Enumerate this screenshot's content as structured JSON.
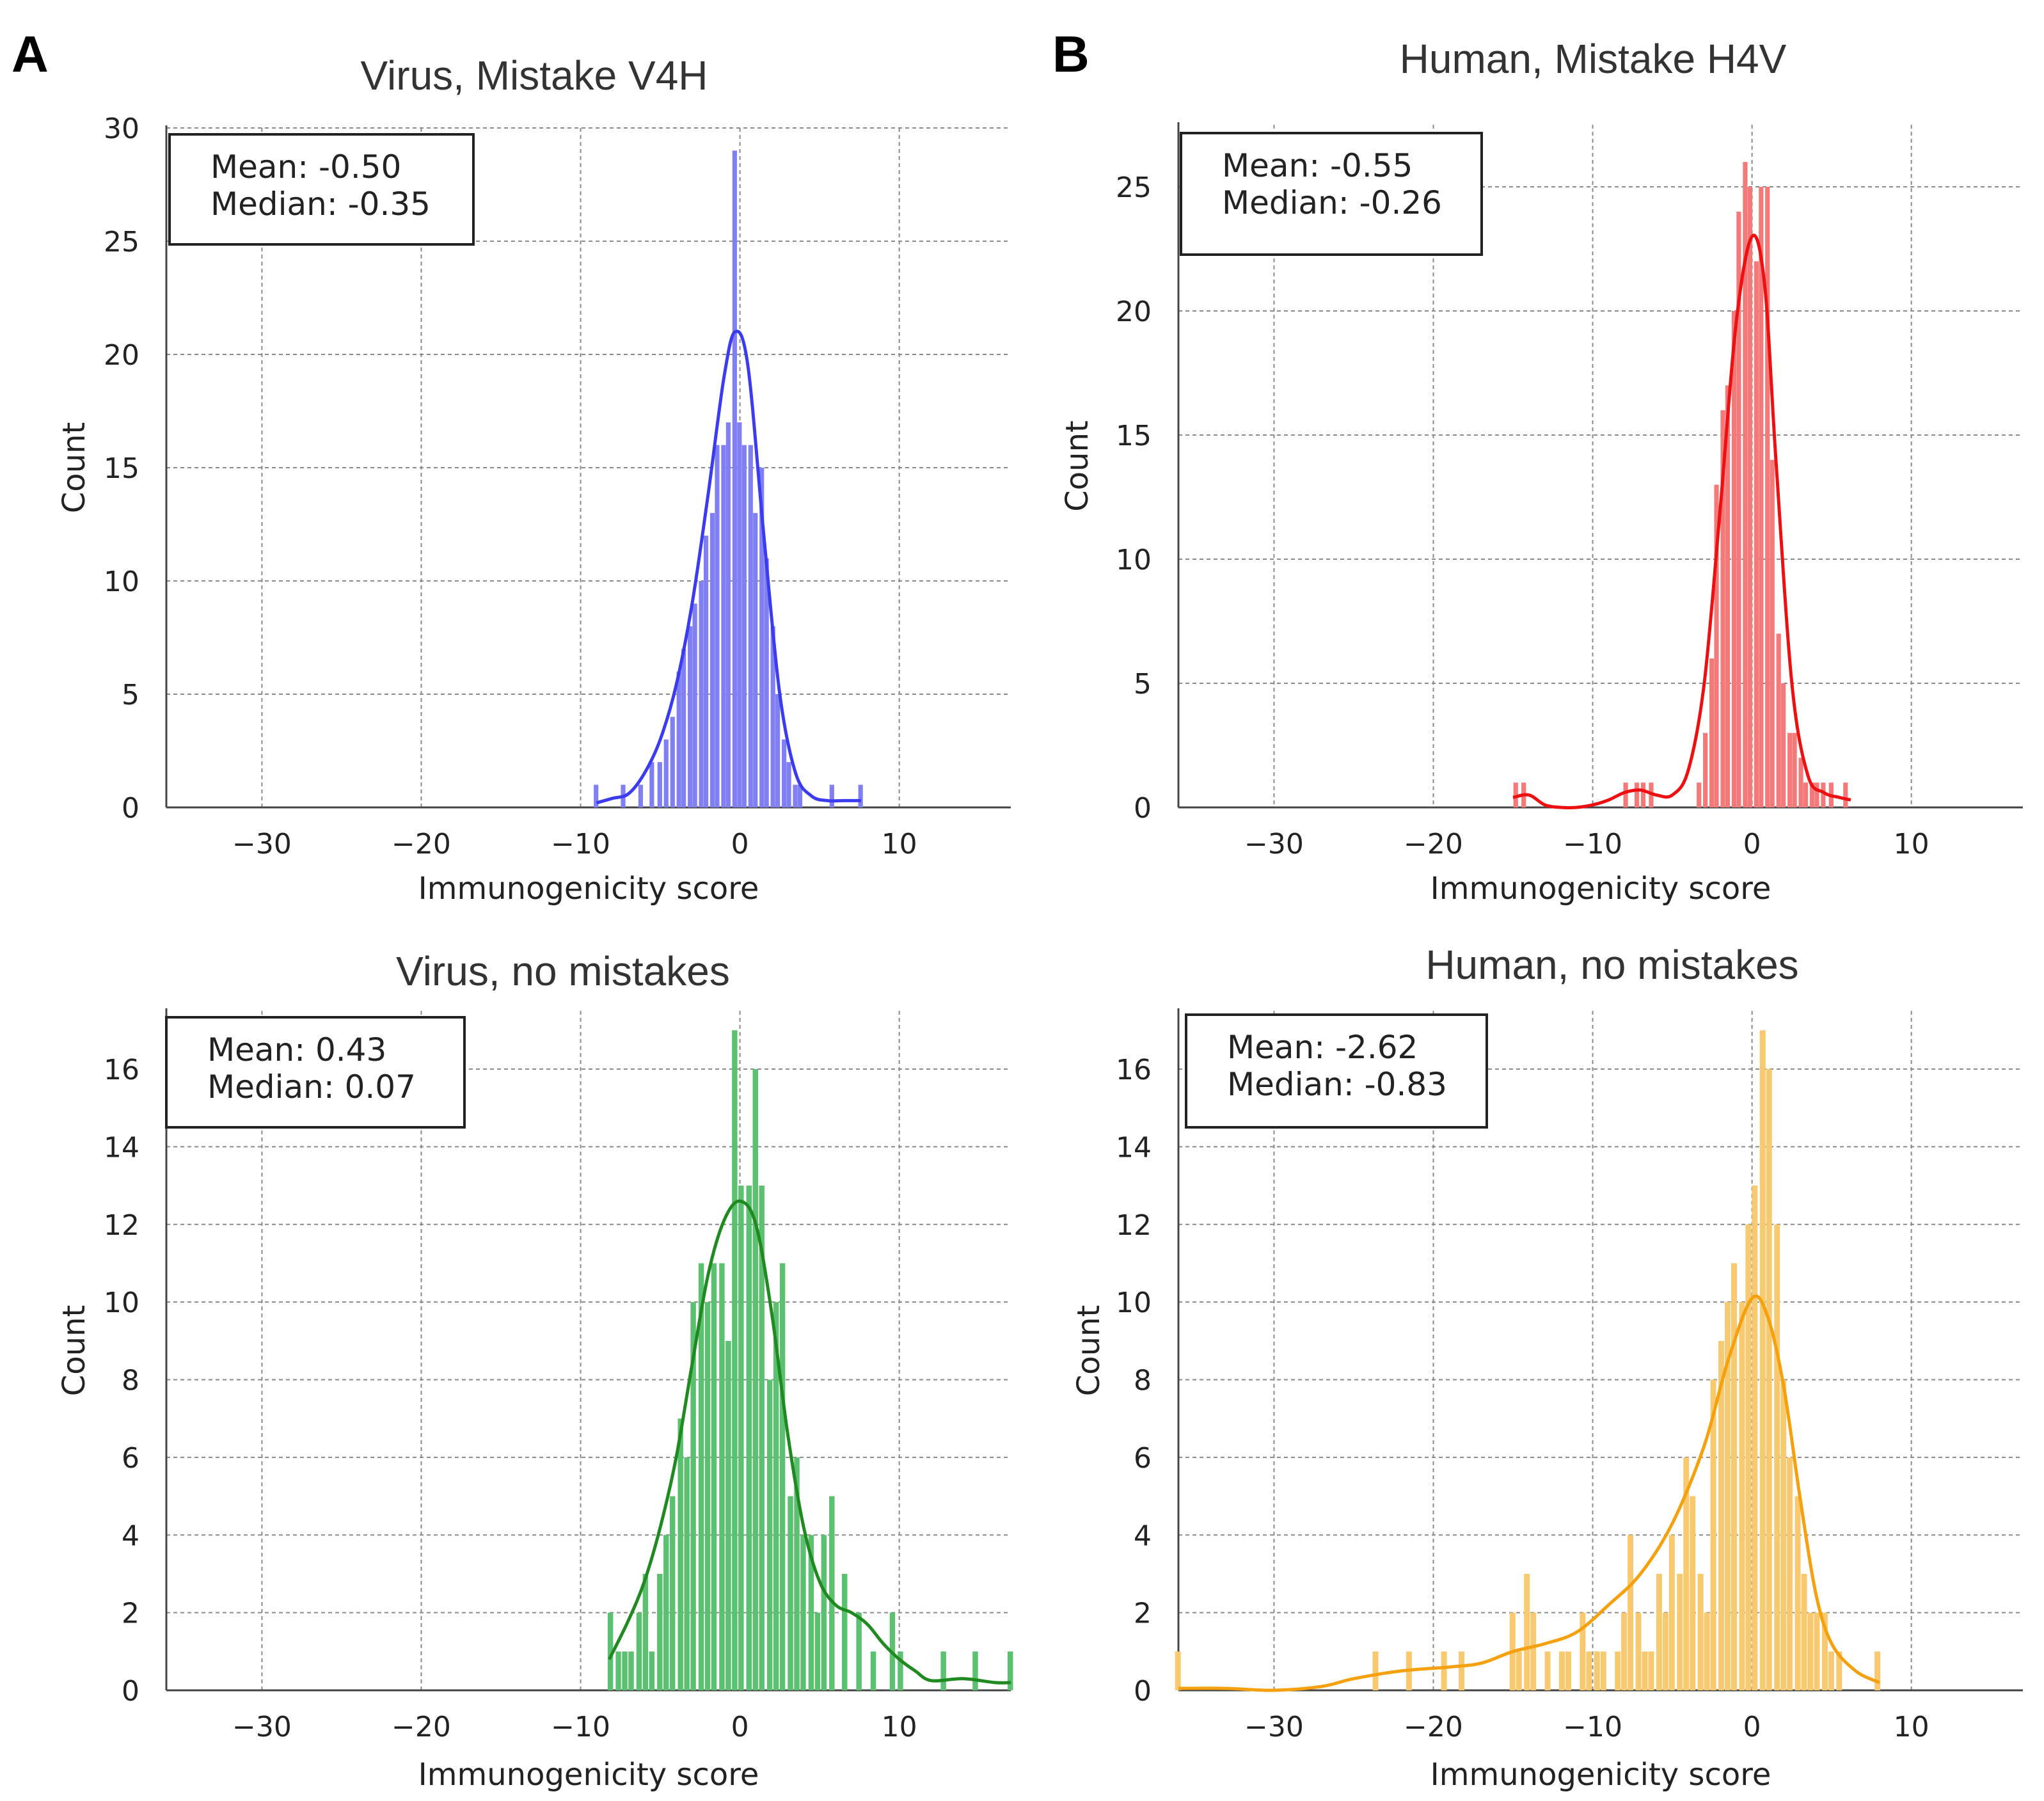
{
  "panels": [
    {
      "letter": "A"
    },
    {
      "letter": "B"
    }
  ],
  "chart_data": [
    {
      "type": "histogram",
      "title": "Virus, Mistake V4H",
      "xlabel": "Immunogenicity score",
      "ylabel": "Count",
      "xlim": [
        -36,
        17
      ],
      "ylim": [
        0,
        30
      ],
      "xticks": [
        -30,
        -20,
        -10,
        0,
        10
      ],
      "yticks": [
        0,
        5,
        10,
        15,
        20,
        25,
        30
      ],
      "grid": true,
      "color": "#3b3bf0",
      "bar_color": "#8080f4",
      "stats": {
        "mean": "Mean: -0.50",
        "median": "Median: -0.35"
      },
      "bin_width": 0.35,
      "bins": [
        [
          -9.0,
          1
        ],
        [
          -7.3,
          1
        ],
        [
          -6.2,
          1
        ],
        [
          -5.5,
          2
        ],
        [
          -5.0,
          2
        ],
        [
          -4.6,
          3
        ],
        [
          -4.2,
          4
        ],
        [
          -3.8,
          6
        ],
        [
          -3.5,
          7
        ],
        [
          -3.1,
          8
        ],
        [
          -2.8,
          9
        ],
        [
          -2.4,
          10
        ],
        [
          -2.1,
          12
        ],
        [
          -1.7,
          13
        ],
        [
          -1.4,
          16
        ],
        [
          -1.0,
          16
        ],
        [
          -0.7,
          17
        ],
        [
          -0.3,
          29
        ],
        [
          0.0,
          17
        ],
        [
          0.3,
          16
        ],
        [
          0.7,
          16
        ],
        [
          1.0,
          13
        ],
        [
          1.4,
          15
        ],
        [
          1.7,
          11
        ],
        [
          2.1,
          8
        ],
        [
          2.4,
          5
        ],
        [
          2.8,
          3
        ],
        [
          3.1,
          2
        ],
        [
          3.5,
          1
        ],
        [
          3.8,
          1
        ],
        [
          5.8,
          1
        ],
        [
          7.6,
          1
        ]
      ],
      "kde": [
        [
          -9.0,
          0.2
        ],
        [
          -8.0,
          0.4
        ],
        [
          -7.0,
          0.6
        ],
        [
          -6.0,
          1.5
        ],
        [
          -5.0,
          3.0
        ],
        [
          -4.0,
          5.4
        ],
        [
          -3.0,
          9.0
        ],
        [
          -2.0,
          13.8
        ],
        [
          -1.0,
          19.0
        ],
        [
          -0.3,
          21.0
        ],
        [
          0.5,
          19.5
        ],
        [
          1.5,
          12.0
        ],
        [
          2.5,
          5.0
        ],
        [
          3.5,
          1.5
        ],
        [
          4.5,
          0.5
        ],
        [
          5.5,
          0.3
        ],
        [
          6.5,
          0.3
        ],
        [
          7.6,
          0.3
        ]
      ]
    },
    {
      "type": "histogram",
      "title": "Human, Mistake H4V",
      "xlabel": "Immunogenicity score",
      "ylabel": "Count",
      "xlim": [
        -36,
        17
      ],
      "ylim": [
        0,
        27.5
      ],
      "xticks": [
        -30,
        -20,
        -10,
        0,
        10
      ],
      "yticks": [
        0,
        5,
        10,
        15,
        20,
        25
      ],
      "grid": true,
      "color": "#ee1010",
      "bar_color": "#f47a7a",
      "stats": {
        "mean": "Mean: -0.55",
        "median": "Median: -0.26"
      },
      "bin_width": 0.35,
      "bins": [
        [
          -14.8,
          1
        ],
        [
          -14.3,
          1
        ],
        [
          -7.9,
          1
        ],
        [
          -7.2,
          1
        ],
        [
          -6.8,
          1
        ],
        [
          -6.3,
          1
        ],
        [
          -3.3,
          1
        ],
        [
          -2.9,
          3
        ],
        [
          -2.5,
          6
        ],
        [
          -2.2,
          13
        ],
        [
          -1.8,
          16
        ],
        [
          -1.5,
          17
        ],
        [
          -1.1,
          20
        ],
        [
          -0.8,
          24
        ],
        [
          -0.4,
          26
        ],
        [
          -0.1,
          25
        ],
        [
          0.3,
          22
        ],
        [
          0.6,
          25
        ],
        [
          1.0,
          25
        ],
        [
          1.3,
          14
        ],
        [
          1.7,
          7
        ],
        [
          2.0,
          5
        ],
        [
          2.4,
          3
        ],
        [
          2.7,
          3
        ],
        [
          3.1,
          2
        ],
        [
          3.4,
          1
        ],
        [
          3.8,
          1
        ],
        [
          4.1,
          1
        ],
        [
          4.5,
          1
        ],
        [
          5.0,
          1
        ],
        [
          5.9,
          1
        ]
      ],
      "kde": [
        [
          -15.0,
          0.4
        ],
        [
          -14.0,
          0.5
        ],
        [
          -13.0,
          0.1
        ],
        [
          -12.0,
          0.0
        ],
        [
          -11.0,
          0.0
        ],
        [
          -10.0,
          0.1
        ],
        [
          -9.0,
          0.3
        ],
        [
          -8.0,
          0.6
        ],
        [
          -7.0,
          0.7
        ],
        [
          -6.0,
          0.5
        ],
        [
          -5.0,
          0.5
        ],
        [
          -4.0,
          1.5
        ],
        [
          -3.0,
          5.0
        ],
        [
          -2.0,
          12.0
        ],
        [
          -1.0,
          19.5
        ],
        [
          0.0,
          23.0
        ],
        [
          0.8,
          21.0
        ],
        [
          1.5,
          14.0
        ],
        [
          2.5,
          5.0
        ],
        [
          3.5,
          1.3
        ],
        [
          4.5,
          0.6
        ],
        [
          5.5,
          0.4
        ],
        [
          6.2,
          0.3
        ]
      ]
    },
    {
      "type": "histogram",
      "title": "Virus, no mistakes",
      "xlabel": "Immunogenicity score",
      "ylabel": "Count",
      "xlim": [
        -36,
        17
      ],
      "ylim": [
        0,
        17.5
      ],
      "xticks": [
        -30,
        -20,
        -10,
        0,
        10
      ],
      "yticks": [
        0,
        2,
        4,
        6,
        8,
        10,
        12,
        14,
        16
      ],
      "grid": true,
      "color": "#1f8a1f",
      "bar_color": "#5cc071",
      "stats": {
        "mean": "Mean: 0.43",
        "median": "Median: 0.07"
      },
      "bin_width": 0.4,
      "bins": [
        [
          -8.1,
          2
        ],
        [
          -7.6,
          1
        ],
        [
          -7.2,
          1
        ],
        [
          -6.8,
          1
        ],
        [
          -6.3,
          2
        ],
        [
          -5.9,
          3
        ],
        [
          -5.5,
          1
        ],
        [
          -5.0,
          3
        ],
        [
          -4.6,
          4
        ],
        [
          -4.2,
          5
        ],
        [
          -3.7,
          7
        ],
        [
          -3.3,
          6
        ],
        [
          -2.9,
          10
        ],
        [
          -2.4,
          11
        ],
        [
          -2.0,
          10
        ],
        [
          -1.6,
          11
        ],
        [
          -1.1,
          11
        ],
        [
          -0.7,
          9
        ],
        [
          -0.3,
          17
        ],
        [
          0.1,
          13
        ],
        [
          0.6,
          13
        ],
        [
          1.0,
          16
        ],
        [
          1.4,
          13
        ],
        [
          1.9,
          8
        ],
        [
          2.3,
          10
        ],
        [
          2.7,
          11
        ],
        [
          3.2,
          5
        ],
        [
          3.6,
          6
        ],
        [
          4.0,
          4
        ],
        [
          4.5,
          4
        ],
        [
          4.9,
          2
        ],
        [
          5.3,
          4
        ],
        [
          5.8,
          5
        ],
        [
          6.6,
          3
        ],
        [
          7.5,
          2
        ],
        [
          8.4,
          1
        ],
        [
          9.6,
          2
        ],
        [
          10.1,
          1
        ],
        [
          12.8,
          1
        ],
        [
          14.8,
          1
        ],
        [
          17.0,
          1
        ]
      ],
      "kde": [
        [
          -8.2,
          0.8
        ],
        [
          -7.0,
          1.8
        ],
        [
          -6.0,
          2.8
        ],
        [
          -5.0,
          4.2
        ],
        [
          -4.0,
          6.0
        ],
        [
          -3.0,
          8.4
        ],
        [
          -2.0,
          10.7
        ],
        [
          -1.0,
          12.1
        ],
        [
          0.0,
          12.6
        ],
        [
          1.0,
          12.0
        ],
        [
          2.0,
          9.7
        ],
        [
          3.0,
          6.6
        ],
        [
          4.0,
          4.2
        ],
        [
          5.0,
          2.8
        ],
        [
          6.0,
          2.2
        ],
        [
          7.0,
          2.0
        ],
        [
          8.0,
          1.7
        ],
        [
          9.0,
          1.2
        ],
        [
          10.0,
          0.8
        ],
        [
          11.0,
          0.5
        ],
        [
          12.0,
          0.25
        ],
        [
          14.0,
          0.3
        ],
        [
          16.0,
          0.2
        ],
        [
          17.0,
          0.2
        ]
      ]
    },
    {
      "type": "histogram",
      "title": "Human, no mistakes",
      "xlabel": "Immunogenicity score",
      "ylabel": "Count",
      "xlim": [
        -36,
        17
      ],
      "ylim": [
        0,
        17.5
      ],
      "xticks": [
        -30,
        -20,
        -10,
        0,
        10
      ],
      "yticks": [
        0,
        2,
        4,
        6,
        8,
        10,
        12,
        14,
        16
      ],
      "grid": true,
      "color": "#f5a00c",
      "bar_color": "#f8c96e",
      "stats": {
        "mean": "Mean: -2.62",
        "median": "Median: -0.83"
      },
      "bin_width": 0.42,
      "bins": [
        [
          -36.0,
          1
        ],
        [
          -23.6,
          1
        ],
        [
          -21.5,
          1
        ],
        [
          -19.3,
          1
        ],
        [
          -18.2,
          1
        ],
        [
          -15.0,
          2
        ],
        [
          -14.6,
          1
        ],
        [
          -14.1,
          3
        ],
        [
          -13.7,
          2
        ],
        [
          -12.8,
          1
        ],
        [
          -11.9,
          1
        ],
        [
          -11.5,
          1
        ],
        [
          -10.6,
          2
        ],
        [
          -10.2,
          1
        ],
        [
          -9.7,
          1
        ],
        [
          -9.3,
          1
        ],
        [
          -8.4,
          1
        ],
        [
          -8.0,
          2
        ],
        [
          -7.6,
          4
        ],
        [
          -7.1,
          2
        ],
        [
          -6.7,
          1
        ],
        [
          -6.3,
          1
        ],
        [
          -5.8,
          3
        ],
        [
          -5.4,
          2
        ],
        [
          -5.0,
          4
        ],
        [
          -4.5,
          3
        ],
        [
          -4.1,
          6
        ],
        [
          -3.7,
          5
        ],
        [
          -3.2,
          3
        ],
        [
          -2.8,
          2
        ],
        [
          -2.4,
          8
        ],
        [
          -1.9,
          9
        ],
        [
          -1.5,
          10
        ],
        [
          -1.1,
          11
        ],
        [
          -0.6,
          10
        ],
        [
          -0.2,
          12
        ],
        [
          0.2,
          13
        ],
        [
          0.7,
          17
        ],
        [
          1.1,
          16
        ],
        [
          1.6,
          12
        ],
        [
          2.0,
          8
        ],
        [
          2.4,
          6
        ],
        [
          2.9,
          5
        ],
        [
          3.3,
          3
        ],
        [
          3.7,
          2
        ],
        [
          4.1,
          2
        ],
        [
          4.6,
          2
        ],
        [
          5.0,
          1
        ],
        [
          5.5,
          1
        ],
        [
          7.9,
          1
        ]
      ],
      "kde": [
        [
          -36.0,
          0.05
        ],
        [
          -33.0,
          0.05
        ],
        [
          -30.0,
          0.0
        ],
        [
          -27.0,
          0.1
        ],
        [
          -25.0,
          0.3
        ],
        [
          -22.0,
          0.5
        ],
        [
          -19.0,
          0.6
        ],
        [
          -17.0,
          0.7
        ],
        [
          -15.0,
          1.0
        ],
        [
          -13.0,
          1.2
        ],
        [
          -11.0,
          1.5
        ],
        [
          -9.0,
          2.2
        ],
        [
          -7.0,
          3.0
        ],
        [
          -5.0,
          4.3
        ],
        [
          -3.0,
          6.3
        ],
        [
          -1.5,
          8.5
        ],
        [
          0.0,
          10.1
        ],
        [
          1.0,
          9.6
        ],
        [
          2.0,
          7.8
        ],
        [
          3.0,
          5.0
        ],
        [
          4.0,
          2.5
        ],
        [
          5.0,
          1.2
        ],
        [
          6.5,
          0.5
        ],
        [
          8.0,
          0.2
        ]
      ]
    }
  ]
}
